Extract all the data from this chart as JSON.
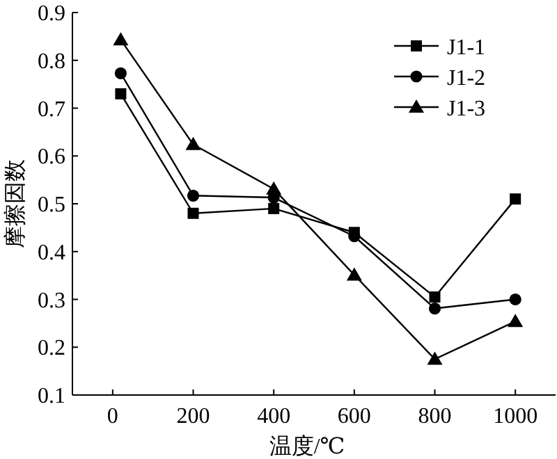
{
  "chart_data": {
    "type": "line",
    "xlabel": "温度/℃",
    "ylabel": "摩擦因数",
    "x": [
      20,
      200,
      400,
      600,
      800,
      1000
    ],
    "series": [
      {
        "name": "J1-1",
        "color": "#000000",
        "marker": "square",
        "values": [
          0.73,
          0.48,
          0.49,
          0.44,
          0.305,
          0.51
        ]
      },
      {
        "name": "J1-2",
        "color": "#000000",
        "marker": "circle",
        "values": [
          0.773,
          0.517,
          0.513,
          0.432,
          0.281,
          0.3
        ]
      },
      {
        "name": "J1-3",
        "color": "#000000",
        "marker": "triangle",
        "values": [
          0.843,
          0.624,
          0.531,
          0.351,
          0.175,
          0.254
        ]
      }
    ],
    "xlim": [
      -100,
      1100
    ],
    "ylim": [
      0.1,
      0.9
    ],
    "xticks": [
      0,
      200,
      400,
      600,
      800,
      1000
    ],
    "yticks": [
      0.1,
      0.2,
      0.3,
      0.4,
      0.5,
      0.6,
      0.7,
      0.8,
      0.9
    ],
    "legend": "top right",
    "grid": false
  }
}
